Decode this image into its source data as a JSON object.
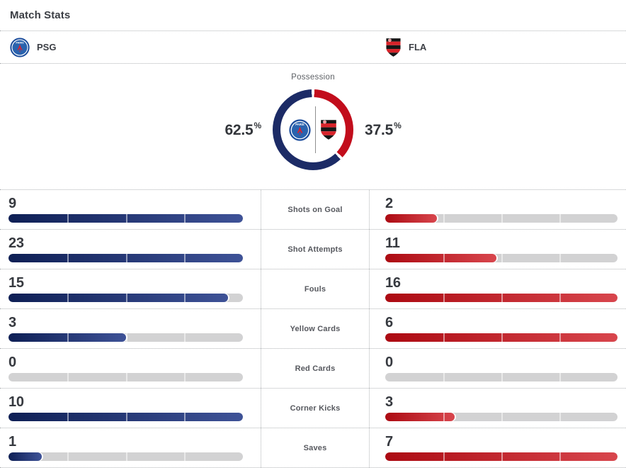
{
  "header": {
    "title": "Match Stats"
  },
  "teams": {
    "home": {
      "abbr": "PSG"
    },
    "away": {
      "abbr": "FLA"
    }
  },
  "possession": {
    "label": "Possession",
    "home": {
      "value": "62.5",
      "unit": "%"
    },
    "away": {
      "value": "37.5",
      "unit": "%"
    }
  },
  "chart_data": [
    {
      "type": "pie",
      "style": "donut",
      "title": "Possession",
      "labels": [
        "PSG",
        "FLA"
      ],
      "values": [
        62.5,
        37.5
      ],
      "colors": [
        "#1c2b66",
        "#c20d1c"
      ],
      "gap_color": "#ffffff",
      "center_icons": [
        "psg-crest",
        "fla-crest"
      ]
    },
    {
      "type": "bar",
      "orientation": "horizontal-paired",
      "categories": [
        "Shots on Goal",
        "Shot Attempts",
        "Fouls",
        "Yellow Cards",
        "Red Cards",
        "Corner Kicks",
        "Saves"
      ],
      "series": [
        {
          "name": "PSG",
          "values": [
            9,
            23,
            15,
            3,
            0,
            10,
            1
          ],
          "bar_gradient": [
            "#0e1f55",
            "#3e5297"
          ]
        },
        {
          "name": "FLA",
          "values": [
            2,
            11,
            16,
            6,
            0,
            3,
            7
          ],
          "bar_gradient": [
            "#ac0a12",
            "#d8464d"
          ]
        }
      ],
      "track_color": "#d2d2d3",
      "scale": "each row filled relative to row max"
    }
  ]
}
